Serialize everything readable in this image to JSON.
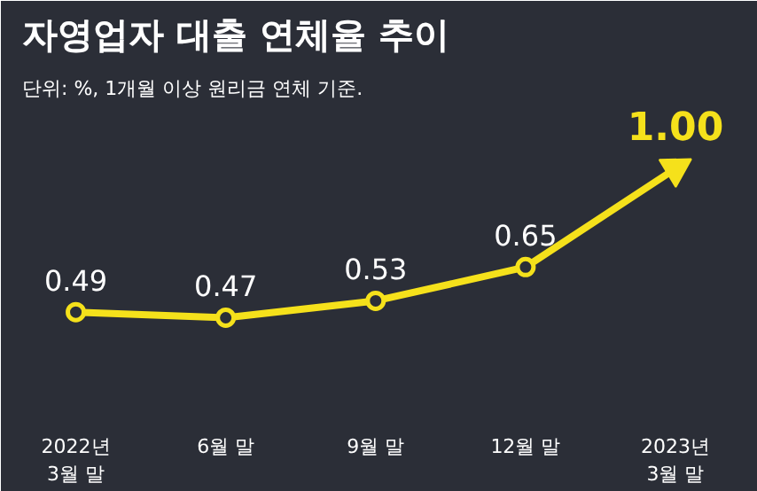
{
  "chart_data": {
    "type": "line",
    "title": "자영업자 대출 연체율 추이",
    "subtitle": "단위: %, 1개월 이상 원리금 연체 기준.",
    "categories": [
      "2022년\n3월 말",
      "6월 말",
      "9월 말",
      "12월 말",
      "2023년\n3월 말"
    ],
    "series": [
      {
        "color": "#f5e11b",
        "values": [
          0.49,
          0.47,
          0.53,
          0.65,
          1.0
        ],
        "value_labels": [
          "0.49",
          "0.47",
          "0.53",
          "0.65",
          "1.00"
        ]
      }
    ],
    "marker": "circle",
    "grid": false
  }
}
